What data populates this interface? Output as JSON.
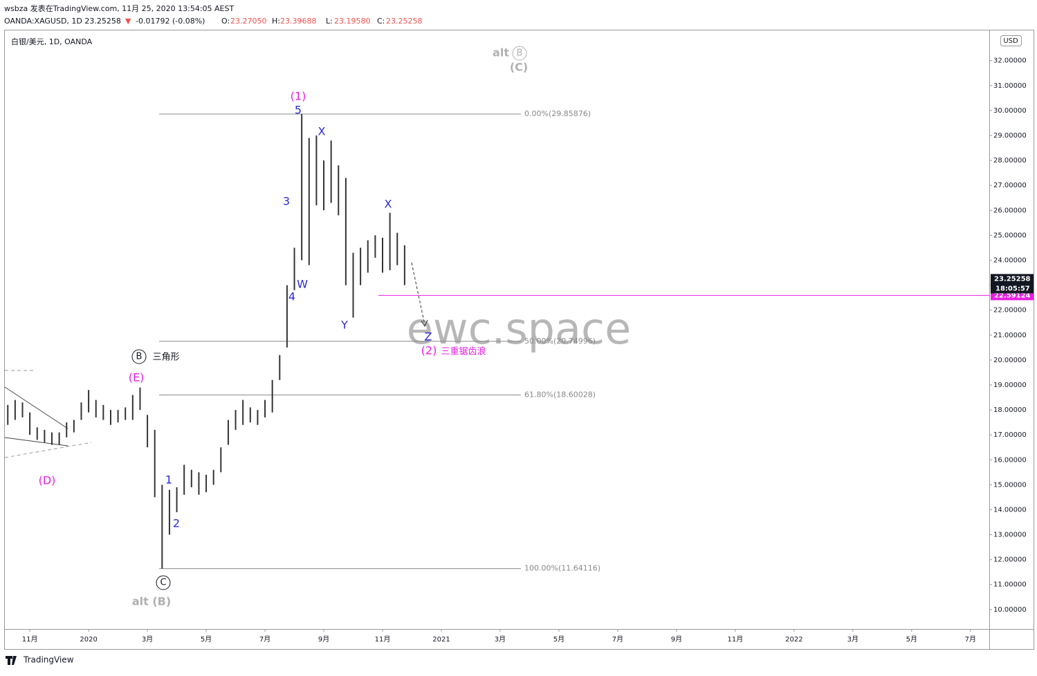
{
  "header": {
    "line1": "wsbza 发表在TradingView.com, 11月 25, 2020 13:54:05 AEST",
    "symbol": "OANDA:XAGUSD, 1D 23.25258",
    "arrow": "▼",
    "change": "-0.01792 (-0.08%)",
    "o_label": "O:",
    "o": "23.27050",
    "h_label": "H:",
    "h": "23.39688",
    "l_label": "L:",
    "l": "23.19580",
    "c_label": "C:",
    "c": "23.25258"
  },
  "chart_data": {
    "type": "ohlc-range",
    "title": "白银/美元, 1D, OANDA",
    "currency": "USD",
    "color": "#333333",
    "x": [
      -2.75,
      -2.5,
      -2.25,
      -2.0,
      -1.75,
      -1.5,
      -1.25,
      -1.0,
      -0.75,
      -0.5,
      -0.25,
      0.0,
      0.25,
      0.5,
      0.75,
      1.0,
      1.25,
      1.5,
      1.75,
      2.0,
      2.25,
      2.5,
      2.75,
      3.0,
      3.25,
      3.5,
      3.75,
      4.0,
      4.25,
      4.5,
      4.75,
      5.0,
      5.25,
      5.5,
      5.75,
      6.0,
      6.25,
      6.5,
      6.75,
      7.0,
      7.25,
      7.5,
      7.75,
      8.0,
      8.25,
      8.5,
      8.75,
      9.0,
      9.25,
      9.5,
      9.75,
      10.0,
      10.25,
      10.5,
      10.75
    ],
    "series": [
      {
        "name": "high",
        "values": [
          18.2,
          18.4,
          18.3,
          17.9,
          17.3,
          17.2,
          17.1,
          17.1,
          17.5,
          17.6,
          18.3,
          18.8,
          18.4,
          18.2,
          18.0,
          18.0,
          18.1,
          18.6,
          18.9,
          17.8,
          17.2,
          15.0,
          14.8,
          14.9,
          15.8,
          15.6,
          15.5,
          15.4,
          15.6,
          16.5,
          17.6,
          18.0,
          18.4,
          18.1,
          18.0,
          18.4,
          19.2,
          20.2,
          23.0,
          24.5,
          29.86,
          28.9,
          29.0,
          28.0,
          28.8,
          27.8,
          27.3,
          24.3,
          24.5,
          24.8,
          25.0,
          24.9,
          25.9,
          25.1,
          24.6
        ]
      },
      {
        "name": "low",
        "values": [
          17.4,
          17.6,
          17.7,
          17.0,
          16.8,
          16.7,
          16.6,
          16.6,
          16.9,
          17.1,
          17.6,
          17.9,
          17.7,
          17.6,
          17.4,
          17.5,
          17.6,
          17.6,
          18.0,
          16.5,
          14.5,
          11.64,
          13.0,
          13.9,
          14.6,
          14.9,
          14.6,
          14.7,
          15.0,
          15.5,
          16.6,
          17.2,
          17.4,
          17.5,
          17.4,
          17.7,
          17.9,
          19.2,
          20.5,
          22.8,
          24.0,
          23.8,
          26.2,
          26.0,
          26.3,
          25.8,
          23.0,
          21.7,
          23.0,
          23.5,
          24.1,
          23.5,
          23.6,
          23.8,
          23.0
        ]
      }
    ],
    "xlim": [
      -2.85,
      30.64
    ],
    "xticks": [
      {
        "value": -2,
        "label": "11月"
      },
      {
        "value": 0,
        "label": "2020"
      },
      {
        "value": 2,
        "label": "3月"
      },
      {
        "value": 4,
        "label": "5月"
      },
      {
        "value": 6,
        "label": "7月"
      },
      {
        "value": 8,
        "label": "9月"
      },
      {
        "value": 10,
        "label": "11月"
      },
      {
        "value": 12,
        "label": "2021"
      },
      {
        "value": 14,
        "label": "3月"
      },
      {
        "value": 16,
        "label": "5月"
      },
      {
        "value": 18,
        "label": "7月"
      },
      {
        "value": 20,
        "label": "9月"
      },
      {
        "value": 22,
        "label": "11月"
      },
      {
        "value": 24,
        "label": "2022"
      },
      {
        "value": 26,
        "label": "3月"
      },
      {
        "value": 28,
        "label": "5月"
      },
      {
        "value": 30,
        "label": "7月"
      }
    ],
    "ylim": [
      9.22,
      33.21
    ],
    "yticks": [
      {
        "value": 10,
        "label": "10.00000"
      },
      {
        "value": 11,
        "label": "11.00000"
      },
      {
        "value": 12,
        "label": "12.00000"
      },
      {
        "value": 13,
        "label": "13.00000"
      },
      {
        "value": 14,
        "label": "14.00000"
      },
      {
        "value": 15,
        "label": "15.00000"
      },
      {
        "value": 16,
        "label": "16.00000"
      },
      {
        "value": 17,
        "label": "17.00000"
      },
      {
        "value": 18,
        "label": "18.00000"
      },
      {
        "value": 19,
        "label": "19.00000"
      },
      {
        "value": 20,
        "label": "20.00000"
      },
      {
        "value": 21,
        "label": "21.00000"
      },
      {
        "value": 22,
        "label": "22.00000"
      },
      {
        "value": 23,
        "label": "23.00000"
      },
      {
        "value": 24,
        "label": "24.00000"
      },
      {
        "value": 25,
        "label": "25.00000"
      },
      {
        "value": 26,
        "label": "26.00000"
      },
      {
        "value": 27,
        "label": "27.00000"
      },
      {
        "value": 28,
        "label": "28.00000"
      },
      {
        "value": 29,
        "label": "29.00000"
      },
      {
        "value": 30,
        "label": "30.00000"
      },
      {
        "value": 31,
        "label": "31.00000"
      },
      {
        "value": 32,
        "label": "32.00000"
      }
    ],
    "last_price": {
      "value": 23.25258,
      "label": "23.25258",
      "countdown": "18:05:57",
      "color": "#131722"
    },
    "level_line": {
      "value": 22.59124,
      "label": "22.59124",
      "color": "#e91ee0"
    },
    "fib_levels": [
      {
        "value": 29.85876,
        "label": "0.00%(29.85876)"
      },
      {
        "value": 20.74996,
        "label": "50.00%(20.74996)"
      },
      {
        "value": 18.60028,
        "label": "61.80%(18.60028)"
      },
      {
        "value": 11.64116,
        "label": "100.00%(11.64116)"
      }
    ],
    "annotations": [
      {
        "text": "(1)",
        "color": "#e91ee0"
      },
      {
        "text": "5",
        "color": "#2a2ad8"
      },
      {
        "text": "X",
        "color": "#2a2ad8"
      },
      {
        "text": "3",
        "color": "#2a2ad8"
      },
      {
        "text": "4",
        "color": "#2a2ad8"
      },
      {
        "text": "W",
        "color": "#2a2ad8"
      },
      {
        "text": "Y",
        "color": "#2a2ad8"
      },
      {
        "text": "X",
        "color": "#2a2ad8"
      },
      {
        "text": "Z",
        "color": "#2a2ad8"
      },
      {
        "text": "(2)",
        "color": "#e91ee0"
      },
      {
        "text": "三重锯齿浪",
        "color": "#e91ee0"
      },
      {
        "text": "1",
        "color": "#2a2ad8"
      },
      {
        "text": "2",
        "color": "#2a2ad8"
      },
      {
        "text": "(E)",
        "color": "#e91ee0"
      },
      {
        "text": "(D)",
        "color": "#e91ee0"
      },
      {
        "text": "三角形",
        "color": "#131722"
      },
      {
        "text": "alt",
        "color": "#b0b0b0"
      },
      {
        "text": "(C)",
        "color": "#b0b0b0"
      },
      {
        "text": "alt (B)",
        "color": "#b0b0b0"
      },
      {
        "text": "B",
        "color": "#131722"
      },
      {
        "text": "C",
        "color": "#131722"
      },
      {
        "text": "B",
        "color": "#b0b0b0"
      }
    ],
    "watermark": "ewc.space",
    "brand": "TradingView"
  }
}
